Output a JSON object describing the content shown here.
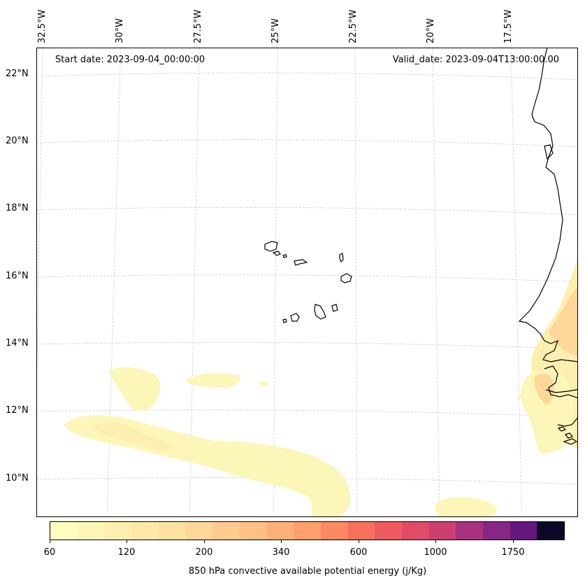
{
  "map": {
    "start_date": "Start date: 2023-09-04_00:00:00",
    "valid_date": "Valid_date: 2023-09-04T13:00:00.00",
    "lat_labels": [
      "22°N",
      "20°N",
      "18°N",
      "16°N",
      "14°N",
      "12°N",
      "10°N"
    ],
    "lon_labels": [
      "32.5°W",
      "30°W",
      "27.5°W",
      "25°W",
      "22.5°W",
      "20°W",
      "17.5°W"
    ],
    "field": "850 hPa convective available potential energy",
    "coastline_color": "#000000",
    "gridline_color": "#cccccc"
  },
  "colorbar": {
    "label": "850 hPa convective available potential energy (j/Kg)",
    "tick_labels": [
      "60",
      "120",
      "200",
      "340",
      "600",
      "1000",
      "1750"
    ],
    "colors": [
      "#fcfdbf",
      "#fcf6b8",
      "#fdefaf",
      "#fde8a8",
      "#fee2a0",
      "#fed799",
      "#fecc8f",
      "#febf84",
      "#feb078",
      "#fe9f6d",
      "#fc8961",
      "#f7705c",
      "#ee5b5e",
      "#e04b66",
      "#cc3f71",
      "#a8327d",
      "#862781",
      "#64197e",
      "#0c0927"
    ]
  }
}
